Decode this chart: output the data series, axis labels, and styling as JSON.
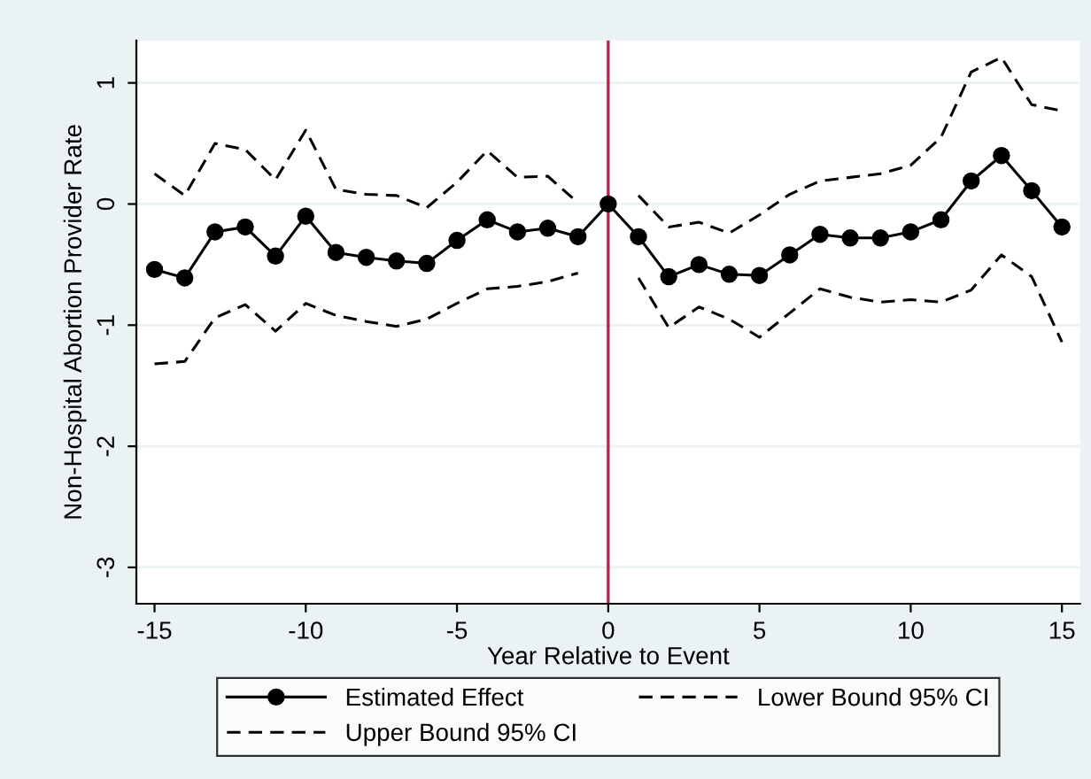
{
  "chart_data": {
    "type": "line",
    "xlabel": "Year Relative to Event",
    "ylabel": "Non-Hospital Abortion Provider Rate",
    "x": [
      -15,
      -14,
      -13,
      -12,
      -11,
      -10,
      -9,
      -8,
      -7,
      -6,
      -5,
      -4,
      -3,
      -2,
      -1,
      0,
      1,
      2,
      3,
      4,
      5,
      6,
      7,
      8,
      9,
      10,
      11,
      12,
      13,
      14,
      15
    ],
    "series": [
      {
        "name": "Estimated Effect",
        "color": "#000000",
        "marker": "circle",
        "line_style": "solid",
        "values": [
          -0.54,
          -0.61,
          -0.23,
          -0.19,
          -0.43,
          -0.1,
          -0.4,
          -0.44,
          -0.47,
          -0.49,
          -0.3,
          -0.13,
          -0.23,
          -0.2,
          -0.27,
          0,
          -0.27,
          -0.6,
          -0.5,
          -0.58,
          -0.59,
          -0.42,
          -0.25,
          -0.28,
          -0.28,
          -0.23,
          -0.13,
          0.19,
          0.4,
          0.11,
          -0.19
        ]
      },
      {
        "name": "Lower Bound 95% CI",
        "color": "#000000",
        "marker": "none",
        "line_style": "dashed",
        "values": [
          -1.32,
          -1.3,
          -0.94,
          -0.83,
          -1.05,
          -0.82,
          -0.92,
          -0.97,
          -1.01,
          -0.95,
          -0.82,
          -0.7,
          -0.68,
          -0.64,
          -0.57,
          null,
          -0.61,
          -1.02,
          -0.85,
          -0.95,
          -1.1,
          -0.9,
          -0.7,
          -0.77,
          -0.81,
          -0.79,
          -0.81,
          -0.71,
          -0.42,
          -0.6,
          -1.14
        ]
      },
      {
        "name": "Upper Bound 95% CI",
        "color": "#000000",
        "marker": "none",
        "line_style": "dashed",
        "values": [
          0.25,
          0.07,
          0.5,
          0.45,
          0.2,
          0.61,
          0.12,
          0.08,
          0.07,
          -0.03,
          0.18,
          0.44,
          0.22,
          0.23,
          0.01,
          null,
          0.07,
          -0.19,
          -0.15,
          -0.24,
          -0.09,
          0.08,
          0.19,
          0.22,
          0.25,
          0.32,
          0.55,
          1.09,
          1.21,
          0.82,
          0.77
        ]
      }
    ],
    "xlim": [
      -15.6,
      15.6
    ],
    "xticks": [
      -15,
      -10,
      -5,
      0,
      5,
      10,
      15
    ],
    "ylim": [
      -3.3,
      1.35
    ],
    "yticks": [
      -3,
      -2,
      -1,
      0,
      1
    ],
    "ref_lines": [
      {
        "axis": "x",
        "value": 0,
        "color": "#c0204a"
      }
    ],
    "grid": "y",
    "legend": "bottom"
  }
}
